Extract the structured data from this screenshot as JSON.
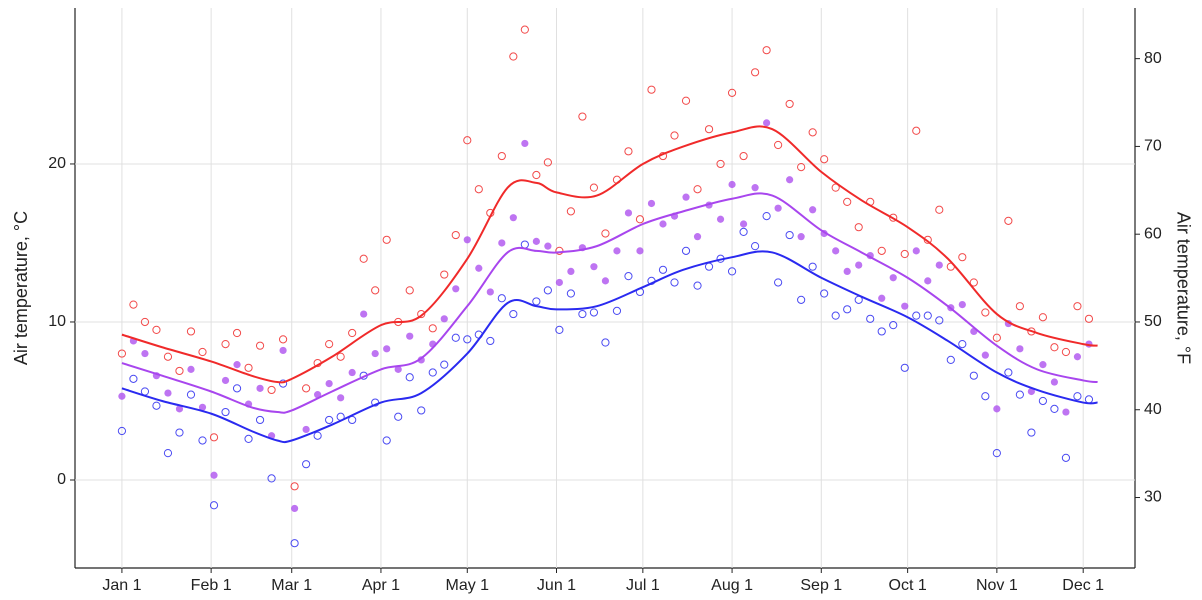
{
  "chart_data": {
    "type": "scatter",
    "ylabel": "Air temperature, °C",
    "y2label": "Air temperature, °F",
    "x": [
      1,
      5,
      9,
      13,
      17,
      21,
      25,
      29,
      33,
      37,
      41,
      45,
      49,
      53,
      57,
      61,
      65,
      69,
      73,
      77,
      81,
      85,
      89,
      93,
      97,
      101,
      105,
      109,
      113,
      117,
      121,
      125,
      129,
      133,
      137,
      141,
      145,
      149,
      153,
      157,
      161,
      165,
      169,
      173,
      177,
      181,
      185,
      189,
      193,
      197,
      201,
      205,
      209,
      213,
      217,
      221,
      225,
      229,
      233,
      237,
      241,
      245,
      249,
      253,
      257,
      261,
      265,
      269,
      273,
      277,
      281,
      285,
      289,
      293,
      297,
      301,
      305,
      309,
      313,
      317,
      321,
      325,
      329,
      333,
      337
    ],
    "smooth_x": [
      1,
      15,
      32,
      46,
      55,
      60,
      74,
      91,
      105,
      121,
      135,
      145,
      152,
      166,
      182,
      196,
      213,
      227,
      244,
      258,
      274,
      288,
      305,
      319,
      335,
      340
    ],
    "series": [
      {
        "color": "#f02a2a",
        "marker": "open",
        "values": [
          8.0,
          11.1,
          10.0,
          9.5,
          7.8,
          6.9,
          9.4,
          8.1,
          2.7,
          8.6,
          9.3,
          7.1,
          8.5,
          5.7,
          8.9,
          -0.4,
          5.8,
          7.4,
          8.6,
          7.8,
          9.3,
          14.0,
          12.0,
          15.2,
          10.0,
          12.0,
          10.5,
          9.6,
          13.0,
          15.5,
          21.5,
          18.4,
          16.9,
          20.5,
          26.8,
          28.5,
          19.3,
          20.1,
          14.5,
          17.0,
          23.0,
          18.5,
          15.6,
          19.0,
          20.8,
          16.5,
          24.7,
          20.5,
          21.8,
          24.0,
          18.4,
          22.2,
          20.0,
          24.5,
          20.5,
          25.8,
          27.2,
          21.2,
          23.8,
          19.8,
          22.0,
          20.3,
          18.5,
          17.6,
          16.0,
          17.6,
          14.5,
          16.6,
          14.3,
          22.1,
          15.2,
          17.1,
          13.5,
          14.1,
          12.5,
          10.6,
          9.0,
          16.4,
          11.0,
          9.4,
          10.3,
          8.4,
          8.1,
          11.0,
          10.2
        ],
        "smooth": [
          9.2,
          8.4,
          7.5,
          6.6,
          6.2,
          6.4,
          7.8,
          9.8,
          10.4,
          14,
          18.5,
          18.8,
          18.2,
          18,
          20,
          21.1,
          22,
          22.2,
          19.5,
          17.7,
          16,
          14,
          10.5,
          9.3,
          8.6,
          8.5
        ]
      },
      {
        "color": "#a846ee",
        "marker": "filled",
        "values": [
          5.3,
          8.8,
          8.0,
          6.6,
          5.5,
          4.5,
          7.0,
          4.6,
          0.3,
          6.3,
          7.3,
          4.8,
          5.8,
          2.8,
          8.2,
          -1.8,
          3.2,
          5.4,
          6.1,
          5.2,
          6.8,
          10.5,
          8.0,
          8.3,
          7.0,
          9.1,
          7.6,
          8.6,
          10.2,
          12.1,
          15.2,
          13.4,
          11.9,
          15.0,
          16.6,
          21.3,
          15.1,
          14.8,
          12.5,
          13.2,
          14.7,
          13.5,
          12.6,
          14.5,
          16.9,
          14.5,
          17.5,
          16.2,
          16.7,
          17.9,
          15.4,
          17.4,
          16.5,
          18.7,
          16.2,
          18.5,
          22.6,
          17.2,
          19.0,
          15.4,
          17.1,
          15.6,
          14.5,
          13.2,
          13.6,
          14.2,
          11.5,
          12.8,
          11.0,
          14.5,
          12.6,
          13.6,
          10.9,
          11.1,
          9.4,
          7.9,
          4.5,
          9.9,
          8.3,
          5.6,
          7.3,
          6.2,
          4.3,
          7.8,
          8.6
        ],
        "smooth": [
          7.4,
          6.6,
          5.6,
          4.6,
          4.3,
          4.4,
          5.6,
          7,
          7.7,
          11,
          14.4,
          14.5,
          14.4,
          14.8,
          16.2,
          17,
          17.8,
          18,
          15.8,
          14.4,
          12.8,
          11,
          8.5,
          7,
          6.3,
          6.2
        ]
      },
      {
        "color": "#2a2af0",
        "marker": "open",
        "values": [
          3.1,
          6.4,
          5.6,
          4.7,
          1.7,
          3.0,
          5.4,
          2.5,
          -1.6,
          4.3,
          5.8,
          2.6,
          3.8,
          0.1,
          6.1,
          -4.0,
          1.0,
          2.8,
          3.8,
          4.0,
          3.8,
          6.6,
          4.9,
          2.5,
          4.0,
          6.5,
          4.4,
          6.8,
          7.3,
          9.0,
          8.9,
          9.2,
          8.8,
          11.5,
          10.5,
          14.9,
          11.3,
          12.0,
          9.5,
          11.8,
          10.5,
          10.6,
          8.7,
          10.7,
          12.9,
          11.9,
          12.6,
          13.3,
          12.5,
          14.5,
          12.3,
          13.5,
          14.0,
          13.2,
          15.7,
          14.8,
          16.7,
          12.5,
          15.5,
          11.4,
          13.5,
          11.8,
          10.4,
          10.8,
          11.4,
          10.2,
          9.4,
          9.8,
          7.1,
          10.4,
          10.4,
          10.1,
          7.6,
          8.6,
          6.6,
          5.3,
          1.7,
          6.8,
          5.4,
          3.0,
          5.0,
          4.5,
          1.4,
          5.3,
          5.1
        ],
        "smooth": [
          5.8,
          5,
          4.2,
          3.1,
          2.5,
          2.5,
          3.5,
          4.9,
          5.5,
          8,
          11.2,
          11,
          10.8,
          11,
          12.2,
          13.3,
          14.1,
          14.4,
          12.8,
          11.6,
          10.3,
          8.8,
          6.8,
          5.7,
          4.9,
          4.9
        ]
      }
    ],
    "xlim": [
      -15.3,
      353
    ],
    "xticks": [
      {
        "value": 1,
        "label": "Jan 1"
      },
      {
        "value": 32,
        "label": "Feb 1"
      },
      {
        "value": 60,
        "label": "Mar 1"
      },
      {
        "value": 91,
        "label": "Apr 1"
      },
      {
        "value": 121,
        "label": "May 1"
      },
      {
        "value": 152,
        "label": "Jun 1"
      },
      {
        "value": 182,
        "label": "Jul 1"
      },
      {
        "value": 213,
        "label": "Aug 1"
      },
      {
        "value": 244,
        "label": "Sep 1"
      },
      {
        "value": 274,
        "label": "Oct 1"
      },
      {
        "value": 305,
        "label": "Nov 1"
      },
      {
        "value": 335,
        "label": "Dec 1"
      }
    ],
    "ylim": [
      -5.57,
      29.87
    ],
    "yticks": [
      0,
      10,
      20
    ],
    "y2lim": [
      21.97,
      85.77
    ],
    "y2ticks": [
      30,
      40,
      50,
      60,
      70,
      80
    ],
    "grid": true
  }
}
